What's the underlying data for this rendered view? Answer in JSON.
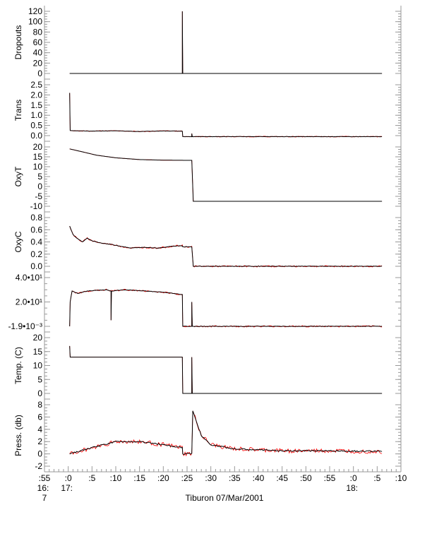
{
  "chart_data": {
    "type": "line",
    "title": "",
    "xlabel": "Tiburon 07/Mar/2001",
    "x_units": "minutes after 17:00",
    "xlim": [
      -5,
      70
    ],
    "x_ticks": [
      {
        "t": -5,
        "label": ":55",
        "hour": "16:",
        "extra": "7"
      },
      {
        "t": 0,
        "label": ":0",
        "hour": "17:"
      },
      {
        "t": 5,
        "label": ":5"
      },
      {
        "t": 10,
        "label": ":10"
      },
      {
        "t": 15,
        "label": ":15"
      },
      {
        "t": 20,
        "label": ":20"
      },
      {
        "t": 25,
        "label": ":25"
      },
      {
        "t": 30,
        "label": ":30"
      },
      {
        "t": 35,
        "label": ":35"
      },
      {
        "t": 40,
        "label": ":40"
      },
      {
        "t": 45,
        "label": ":45"
      },
      {
        "t": 50,
        "label": ":50"
      },
      {
        "t": 55,
        "label": ":55"
      },
      {
        "t": 60,
        "label": ":0",
        "hour": "18:"
      },
      {
        "t": 65,
        "label": ":5"
      },
      {
        "t": 70,
        "label": ":10"
      }
    ],
    "colors": {
      "raw": "#ff0000",
      "smoothed": "#000000"
    },
    "panels": [
      {
        "ylabel": "Dropouts",
        "ylim": [
          0,
          125
        ],
        "ticks": [
          [
            120,
            "120"
          ],
          [
            100,
            "100"
          ],
          [
            80,
            "80"
          ],
          [
            60,
            "60"
          ],
          [
            40,
            "40"
          ],
          [
            20,
            "20"
          ],
          [
            0,
            "0"
          ]
        ],
        "points": [
          [
            0.3,
            0
          ],
          [
            24,
            0
          ],
          [
            24,
            120
          ],
          [
            24.1,
            0
          ],
          [
            66,
            0
          ]
        ],
        "noise": 0
      },
      {
        "ylabel": "Trans",
        "ylim": [
          -0.1,
          2.7
        ],
        "ticks": [
          [
            2.5,
            "2.5"
          ],
          [
            2.0,
            "2.0"
          ],
          [
            1.5,
            "1.5"
          ],
          [
            1.0,
            "1.0"
          ],
          [
            0.5,
            "0.5"
          ],
          [
            0.0,
            "0.0"
          ]
        ],
        "points": [
          [
            0.3,
            2.1
          ],
          [
            0.4,
            0.25
          ],
          [
            5,
            0.22
          ],
          [
            10,
            0.24
          ],
          [
            15,
            0.2
          ],
          [
            20,
            0.23
          ],
          [
            24,
            0.22
          ],
          [
            24.1,
            -0.05
          ],
          [
            26,
            -0.05
          ],
          [
            26,
            0.1
          ],
          [
            26.1,
            -0.05
          ],
          [
            66,
            -0.05
          ]
        ],
        "noise": 0.02
      },
      {
        "ylabel": "OxyT",
        "ylim": [
          -11,
          21
        ],
        "ticks": [
          [
            20,
            "20"
          ],
          [
            15,
            "15"
          ],
          [
            10,
            "10"
          ],
          [
            5,
            "5"
          ],
          [
            0,
            "0"
          ],
          [
            -5,
            "-5"
          ],
          [
            -10,
            "-10"
          ]
        ],
        "points": [
          [
            0.3,
            19
          ],
          [
            3,
            17.5
          ],
          [
            6,
            15.8
          ],
          [
            10,
            14.5
          ],
          [
            15,
            13.6
          ],
          [
            20,
            13.3
          ],
          [
            26,
            13.2
          ],
          [
            26.3,
            -7.5
          ],
          [
            66,
            -7.5
          ]
        ],
        "noise": 0
      },
      {
        "ylabel": "OxyC",
        "ylim": [
          -0.01,
          0.82
        ],
        "ticks": [
          [
            0.8,
            "0.8"
          ],
          [
            0.6,
            "0.6"
          ],
          [
            0.4,
            "0.4"
          ],
          [
            0.2,
            "0.2"
          ],
          [
            0.0,
            "0.0"
          ]
        ],
        "points": [
          [
            0.3,
            0.66
          ],
          [
            1,
            0.52
          ],
          [
            2,
            0.45
          ],
          [
            3,
            0.4
          ],
          [
            4,
            0.46
          ],
          [
            5,
            0.42
          ],
          [
            7,
            0.38
          ],
          [
            9,
            0.36
          ],
          [
            11,
            0.33
          ],
          [
            13,
            0.3
          ],
          [
            16,
            0.31
          ],
          [
            19,
            0.3
          ],
          [
            22,
            0.33
          ],
          [
            24,
            0.34
          ],
          [
            24.1,
            0.32
          ],
          [
            26,
            0.32
          ],
          [
            26.3,
            0
          ],
          [
            66,
            0
          ]
        ],
        "noise": 0.012
      },
      {
        "ylabel": "",
        "ylim": [
          -0.5,
          40.5
        ],
        "ticks": [
          [
            40,
            "4.0•10¹"
          ],
          [
            20,
            "2.0•10¹"
          ],
          [
            -0.0019,
            "-1.9•10⁻³"
          ]
        ],
        "points": [
          [
            0.3,
            0
          ],
          [
            0.4,
            20
          ],
          [
            0.8,
            29
          ],
          [
            2,
            27
          ],
          [
            4,
            29
          ],
          [
            8,
            30
          ],
          [
            9,
            29
          ],
          [
            9,
            5
          ],
          [
            9.1,
            29
          ],
          [
            12,
            30
          ],
          [
            16,
            29
          ],
          [
            20,
            28
          ],
          [
            24,
            26
          ],
          [
            24.1,
            0
          ],
          [
            26,
            0
          ],
          [
            26,
            20
          ],
          [
            26.1,
            0
          ],
          [
            66,
            0
          ]
        ],
        "noise": 0.6
      },
      {
        "ylabel": "Temp. (C)",
        "ylim": [
          -0.5,
          21
        ],
        "ticks": [
          [
            20,
            "20"
          ],
          [
            15,
            "15"
          ],
          [
            10,
            "10"
          ],
          [
            5,
            "5"
          ],
          [
            0,
            "0"
          ]
        ],
        "points": [
          [
            0.3,
            17
          ],
          [
            0.4,
            13
          ],
          [
            24,
            13
          ],
          [
            24.1,
            0
          ],
          [
            26,
            0
          ],
          [
            26,
            13
          ],
          [
            26.1,
            0
          ],
          [
            66,
            0
          ]
        ],
        "noise": 0
      },
      {
        "ylabel": "Press. (db)",
        "ylim": [
          -2.3,
          8.5
        ],
        "ticks": [
          [
            8,
            "8"
          ],
          [
            6,
            "6"
          ],
          [
            4,
            "4"
          ],
          [
            2,
            "2"
          ],
          [
            0,
            "0"
          ],
          [
            -2,
            "-2"
          ]
        ],
        "points": [
          [
            0.3,
            0
          ],
          [
            5,
            1
          ],
          [
            10,
            2
          ],
          [
            15,
            2
          ],
          [
            20,
            1.5
          ],
          [
            24,
            1
          ],
          [
            24.1,
            0
          ],
          [
            26,
            0
          ],
          [
            26.2,
            7
          ],
          [
            28,
            3
          ],
          [
            30,
            1.5
          ],
          [
            35,
            0.8
          ],
          [
            45,
            0.5
          ],
          [
            55,
            0.5
          ],
          [
            66,
            0.4
          ]
        ],
        "noise": 0.35
      }
    ]
  }
}
